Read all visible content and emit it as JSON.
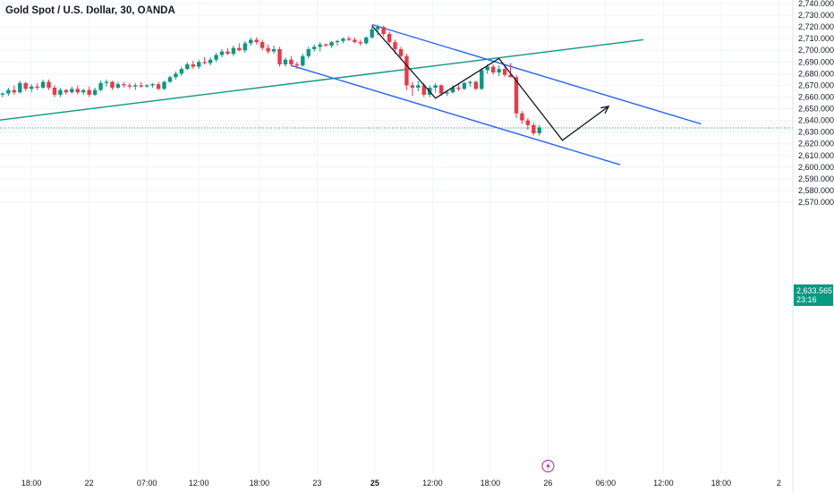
{
  "header": {
    "title": "Gold Spot / U.S. Dollar, 30, OANDA"
  },
  "last_price": {
    "value": "2,633.565",
    "countdown": "23:16",
    "color": "#089981"
  },
  "colors": {
    "up": "#089981",
    "down": "#F23645",
    "channel": "#2962FF",
    "trendline": "#089981",
    "projection": "#131722",
    "event_icon": "#9C27B0"
  },
  "event_icon": "lightning-icon",
  "chart_data": {
    "type": "candlestick",
    "symbol": "Gold Spot / U.S. Dollar",
    "interval": "30",
    "source": "OANDA",
    "ylim": [
      2565,
      2740
    ],
    "y_ticks": [
      "2,740.000",
      "2,730.000",
      "2,720.000",
      "2,710.000",
      "2,700.000",
      "2,690.000",
      "2,680.000",
      "2,670.000",
      "2,660.000",
      "2,650.000",
      "2,640.000",
      "2,630.000",
      "2,620.000",
      "2,610.000",
      "2,600.000",
      "2,590.000",
      "2,580.000",
      "2,570.000"
    ],
    "y_tick_values": [
      2740,
      2730,
      2720,
      2710,
      2700,
      2690,
      2680,
      2670,
      2660,
      2650,
      2640,
      2630,
      2620,
      2610,
      2600,
      2590,
      2580,
      2570
    ],
    "x_ticks": [
      {
        "label": "18:00",
        "bar": 5,
        "bold": false
      },
      {
        "label": "22",
        "bar": 15,
        "bold": false
      },
      {
        "label": "07:00",
        "bar": 25,
        "bold": false
      },
      {
        "label": "12:00",
        "bar": 34,
        "bold": false
      },
      {
        "label": "18:00",
        "bar": 44.5,
        "bold": false
      },
      {
        "label": "23",
        "bar": 54.5,
        "bold": false
      },
      {
        "label": "25",
        "bar": 64.5,
        "bold": true
      },
      {
        "label": "12:00",
        "bar": 74.5,
        "bold": false
      },
      {
        "label": "18:00",
        "bar": 84.5,
        "bold": false
      },
      {
        "label": "26",
        "bar": 94.5,
        "bold": false
      },
      {
        "label": "06:00",
        "bar": 104.5,
        "bold": false
      },
      {
        "label": "12:00",
        "bar": 114.5,
        "bold": false
      },
      {
        "label": "18:00",
        "bar": 124.5,
        "bold": false
      },
      {
        "label": "2",
        "bar": 134.5,
        "bold": false
      }
    ],
    "last_price": 2633.565,
    "candles": [
      [
        2662,
        2664,
        2660,
        2663
      ],
      [
        2663,
        2668,
        2661,
        2666
      ],
      [
        2666,
        2670,
        2662,
        2664
      ],
      [
        2664,
        2674,
        2663,
        2672
      ],
      [
        2672,
        2673,
        2665,
        2667
      ],
      [
        2667,
        2671,
        2664,
        2669
      ],
      [
        2669,
        2672,
        2666,
        2668
      ],
      [
        2668,
        2675,
        2667,
        2673
      ],
      [
        2673,
        2675,
        2666,
        2668
      ],
      [
        2668,
        2670,
        2660,
        2662
      ],
      [
        2662,
        2668,
        2660,
        2666
      ],
      [
        2666,
        2667,
        2662,
        2664
      ],
      [
        2664,
        2669,
        2663,
        2667
      ],
      [
        2667,
        2670,
        2662,
        2664
      ],
      [
        2664,
        2667,
        2662,
        2666
      ],
      [
        2666,
        2669,
        2660,
        2662
      ],
      [
        2662,
        2668,
        2661,
        2666
      ],
      [
        2666,
        2674,
        2665,
        2672
      ],
      [
        2672,
        2675,
        2669,
        2673
      ],
      [
        2673,
        2674,
        2666,
        2668
      ],
      [
        2668,
        2673,
        2667,
        2671
      ],
      [
        2671,
        2673,
        2668,
        2670
      ],
      [
        2670,
        2672,
        2667,
        2669
      ],
      [
        2669,
        2672,
        2666,
        2670
      ],
      [
        2670,
        2673,
        2668,
        2669
      ],
      [
        2669,
        2671,
        2668,
        2670
      ],
      [
        2670,
        2672,
        2668,
        2671
      ],
      [
        2671,
        2673,
        2666,
        2667
      ],
      [
        2667,
        2674,
        2666,
        2673
      ],
      [
        2673,
        2678,
        2672,
        2677
      ],
      [
        2677,
        2682,
        2675,
        2680
      ],
      [
        2680,
        2686,
        2678,
        2684
      ],
      [
        2684,
        2690,
        2683,
        2688
      ],
      [
        2688,
        2691,
        2684,
        2686
      ],
      [
        2686,
        2692,
        2684,
        2690
      ],
      [
        2690,
        2694,
        2688,
        2689
      ],
      [
        2689,
        2694,
        2687,
        2692
      ],
      [
        2692,
        2698,
        2690,
        2696
      ],
      [
        2696,
        2701,
        2694,
        2699
      ],
      [
        2699,
        2702,
        2696,
        2697
      ],
      [
        2697,
        2704,
        2695,
        2702
      ],
      [
        2702,
        2706,
        2699,
        2700
      ],
      [
        2700,
        2708,
        2698,
        2706
      ],
      [
        2706,
        2711,
        2704,
        2709
      ],
      [
        2709,
        2711,
        2705,
        2707
      ],
      [
        2707,
        2709,
        2700,
        2702
      ],
      [
        2702,
        2705,
        2697,
        2699
      ],
      [
        2699,
        2704,
        2697,
        2701
      ],
      [
        2701,
        2703,
        2686,
        2688
      ],
      [
        2688,
        2694,
        2686,
        2692
      ],
      [
        2692,
        2695,
        2686,
        2688
      ],
      [
        2688,
        2690,
        2684,
        2687
      ],
      [
        2687,
        2697,
        2686,
        2695
      ],
      [
        2695,
        2703,
        2693,
        2701
      ],
      [
        2701,
        2705,
        2699,
        2703
      ],
      [
        2703,
        2707,
        2699,
        2705
      ],
      [
        2705,
        2706,
        2703,
        2704
      ],
      [
        2704,
        2708,
        2702,
        2707
      ],
      [
        2707,
        2709,
        2704,
        2708
      ],
      [
        2708,
        2711,
        2706,
        2710
      ],
      [
        2710,
        2712,
        2708,
        2709
      ],
      [
        2709,
        2711,
        2706,
        2707
      ],
      [
        2707,
        2709,
        2704,
        2706
      ],
      [
        2706,
        2712,
        2705,
        2711
      ],
      [
        2711,
        2720,
        2710,
        2718
      ],
      [
        2718,
        2722,
        2713,
        2720
      ],
      [
        2720,
        2721,
        2712,
        2714
      ],
      [
        2714,
        2716,
        2704,
        2707
      ],
      [
        2707,
        2709,
        2697,
        2701
      ],
      [
        2701,
        2703,
        2692,
        2695
      ],
      [
        2695,
        2697,
        2666,
        2670
      ],
      [
        2670,
        2673,
        2661,
        2668
      ],
      [
        2668,
        2674,
        2665,
        2670
      ],
      [
        2670,
        2672,
        2660,
        2662
      ],
      [
        2662,
        2670,
        2660,
        2668
      ],
      [
        2668,
        2672,
        2664,
        2670
      ],
      [
        2670,
        2671,
        2661,
        2663
      ],
      [
        2663,
        2666,
        2661,
        2664
      ],
      [
        2664,
        2670,
        2663,
        2668
      ],
      [
        2668,
        2671,
        2665,
        2667
      ],
      [
        2667,
        2673,
        2666,
        2672
      ],
      [
        2672,
        2674,
        2669,
        2673
      ],
      [
        2673,
        2674,
        2666,
        2667
      ],
      [
        2667,
        2685,
        2666,
        2683
      ],
      [
        2683,
        2688,
        2680,
        2686
      ],
      [
        2686,
        2688,
        2679,
        2681
      ],
      [
        2681,
        2687,
        2678,
        2684
      ],
      [
        2684,
        2686,
        2677,
        2679
      ],
      [
        2679,
        2689,
        2677,
        2677
      ],
      [
        2677,
        2679,
        2642,
        2646
      ],
      [
        2646,
        2648,
        2637,
        2640
      ],
      [
        2640,
        2642,
        2632,
        2636
      ],
      [
        2636,
        2638,
        2627,
        2629
      ],
      [
        2629,
        2636,
        2627,
        2634
      ]
    ],
    "drawings": {
      "descending_channel_upper": [
        [
          64,
          2722
        ],
        [
          121,
          2637
        ]
      ],
      "descending_channel_lower": [
        [
          50,
          2687
        ],
        [
          107,
          2602
        ]
      ],
      "rising_trendline": [
        [
          -1,
          2640
        ],
        [
          111,
          2709
        ]
      ],
      "price_path": [
        [
          64,
          2721
        ],
        [
          75,
          2659
        ],
        [
          86,
          2693
        ],
        [
          97,
          2623
        ],
        [
          105,
          2652
        ]
      ]
    }
  }
}
